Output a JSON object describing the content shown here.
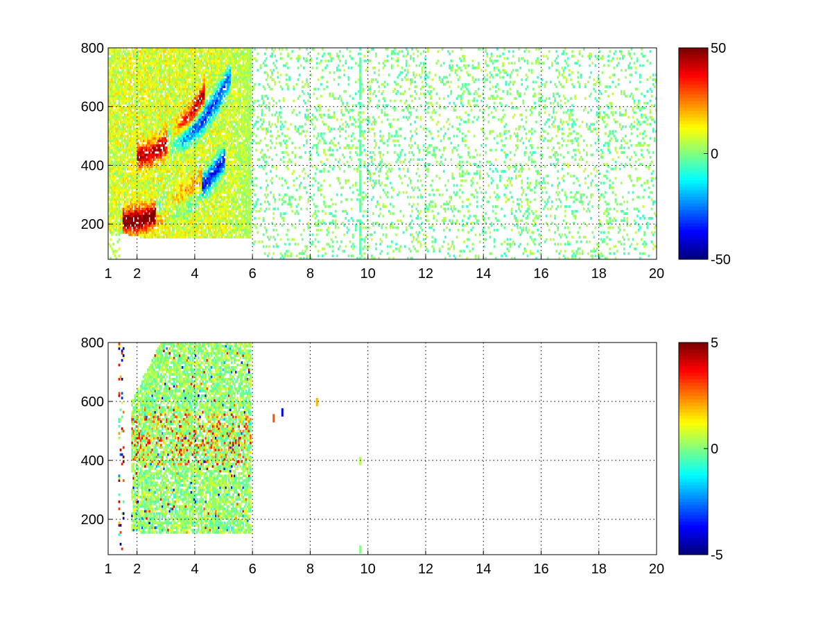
{
  "figure": {
    "background": "#ffffff",
    "colormap": "jet"
  },
  "chart_data": [
    {
      "type": "heatmap",
      "title": "",
      "xlabel": "",
      "ylabel": "",
      "xlim": [
        1,
        20
      ],
      "ylim": [
        80,
        800
      ],
      "xticks": [
        1,
        2,
        4,
        6,
        8,
        10,
        12,
        14,
        16,
        18,
        20
      ],
      "yticks": [
        200,
        400,
        600,
        800
      ],
      "grid": true,
      "colorbar": {
        "clim": [
          -50,
          50
        ],
        "ticks": [
          50,
          0,
          -50
        ]
      },
      "structure": {
        "ridges": [
          {
            "x_range": [
              1.5,
              4.2
            ],
            "y_start": 205,
            "y_end": 330,
            "value": 45
          },
          {
            "x_range": [
              2.6,
              5.0
            ],
            "y_start": 240,
            "y_end": 420,
            "value": -45
          },
          {
            "x_range": [
              2.0,
              4.3
            ],
            "y_start": 430,
            "y_end": 640,
            "value": 35
          },
          {
            "x_range": [
              3.0,
              5.2
            ],
            "y_start": 480,
            "y_end": 700,
            "value": -40
          }
        ],
        "dense_region": {
          "x_range": [
            1.0,
            5.9
          ],
          "y_floor": 150
        },
        "sparse_region": {
          "x_range": [
            5.9,
            20
          ],
          "value_range": [
            -8,
            8
          ]
        },
        "streak_x": 9.7
      }
    },
    {
      "type": "heatmap",
      "title": "",
      "xlabel": "",
      "ylabel": "",
      "xlim": [
        1,
        20
      ],
      "ylim": [
        80,
        800
      ],
      "xticks": [
        1,
        2,
        4,
        6,
        8,
        10,
        12,
        14,
        16,
        18,
        20
      ],
      "yticks": [
        200,
        400,
        600,
        800
      ],
      "grid": true,
      "colorbar": {
        "clim": [
          -5,
          5
        ],
        "ticks": [
          5,
          0,
          -5
        ]
      },
      "structure": {
        "dense_region": {
          "x_range": [
            1.8,
            5.9
          ],
          "y_floor": 150
        },
        "isolated_points": [
          {
            "x": 6.7,
            "y": 545,
            "value": 3
          },
          {
            "x": 7.0,
            "y": 565,
            "value": -4
          },
          {
            "x": 8.2,
            "y": 600,
            "value": 2
          },
          {
            "x": 9.7,
            "y": 400,
            "value": 0.5
          },
          {
            "x": 9.7,
            "y": 100,
            "value": 0
          }
        ]
      }
    }
  ]
}
